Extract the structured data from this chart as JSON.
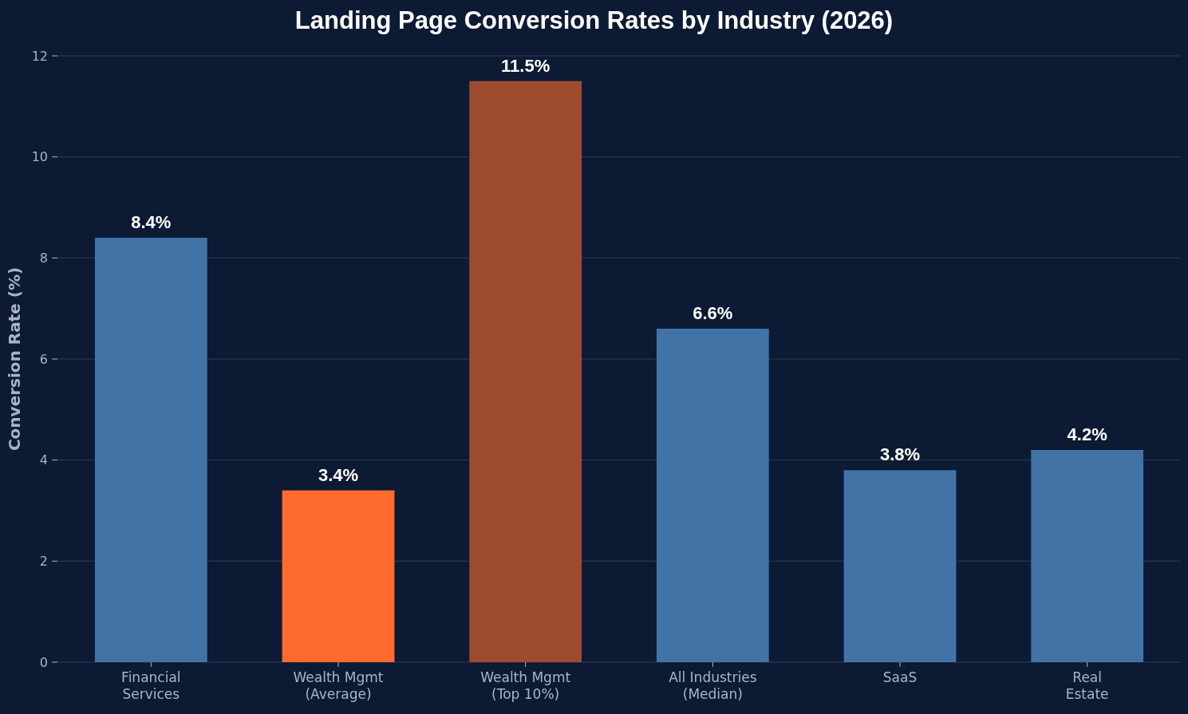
{
  "chart_data": {
    "type": "bar",
    "title": "Landing Page Conversion Rates by Industry (2026)",
    "ylabel": "Conversion Rate (%)",
    "categories": [
      "Financial\nServices",
      "Wealth Mgmt\n(Average)",
      "Wealth Mgmt\n(Top 10%)",
      "All Industries\n(Median)",
      "SaaS",
      "Real\nEstate"
    ],
    "values": [
      8.4,
      3.4,
      11.5,
      6.6,
      3.8,
      4.2
    ],
    "colors": [
      "#4173a6",
      "#ff6b2e",
      "#9c4b2f",
      "#4173a6",
      "#4173a6",
      "#4173a6"
    ],
    "value_labels": [
      "8.4%",
      "3.4%",
      "11.5%",
      "6.6%",
      "3.8%",
      "4.2%"
    ],
    "ylim": [
      0,
      12
    ],
    "yticks": [
      0,
      2,
      4,
      6,
      8,
      10,
      12
    ],
    "grid": "y"
  }
}
